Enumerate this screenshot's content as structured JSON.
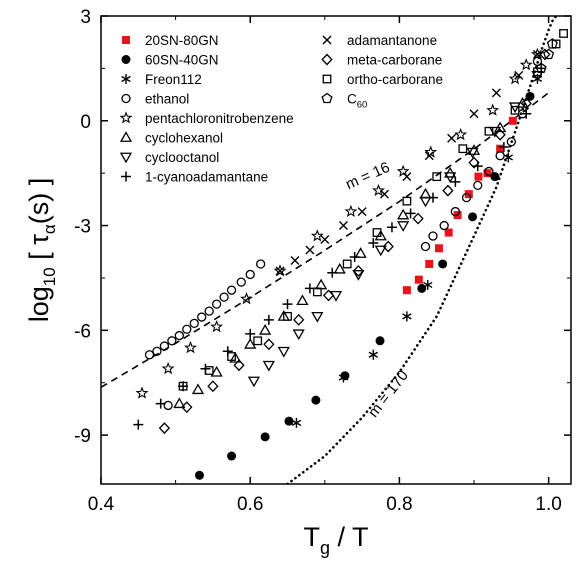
{
  "chart_data": {
    "type": "scatter",
    "xlabel": "Tg / T",
    "ylabel": "log10 [ τα(s) ]",
    "xlim": [
      0.4,
      1.03
    ],
    "ylim": [
      -10.4,
      3
    ],
    "x_ticks": [
      "0.4",
      "0.6",
      "0.8",
      "1.0"
    ],
    "x_tick_values": [
      0.4,
      0.6,
      0.8,
      1.0
    ],
    "y_ticks": [
      "3",
      "0",
      "-3",
      "-6",
      "-9"
    ],
    "y_tick_values": [
      3,
      0,
      -3,
      -6,
      -9
    ],
    "grid": false,
    "legend_placement": "top-left",
    "annotations": [
      {
        "text": "m = 16",
        "x": 0.76,
        "y": -1.7
      },
      {
        "text": "m = 170",
        "x": 0.79,
        "y": -7.9
      }
    ],
    "lines": [
      {
        "label": "m = 16",
        "style": "dashed",
        "x": [
          0.4,
          0.5,
          0.6,
          0.7,
          0.8,
          0.9,
          1.0
        ],
        "y": [
          -7.63,
          -6.37,
          -5.06,
          -3.71,
          -2.31,
          -0.81,
          0.8
        ]
      },
      {
        "label": "m = 170",
        "style": "dotted",
        "x": [
          0.65,
          0.7,
          0.75,
          0.8,
          0.85,
          0.9,
          0.93,
          0.96,
          0.98,
          0.99,
          1.0,
          1.005,
          1.01
        ],
        "y": [
          -10.4,
          -9.6,
          -8.5,
          -7.2,
          -5.6,
          -3.3,
          -1.9,
          0.0,
          1.3,
          2.0,
          2.6,
          2.85,
          3.0
        ]
      }
    ],
    "series": [
      {
        "name": "20SN-80GN",
        "marker": "filled-square",
        "color": "#e8131c",
        "x": [
          0.81,
          0.826,
          0.84,
          0.853,
          0.866,
          0.878,
          0.893,
          0.906,
          0.918,
          0.935,
          0.952
        ],
        "y": [
          -4.85,
          -4.55,
          -4.1,
          -3.65,
          -3.2,
          -2.7,
          -2.1,
          -1.6,
          -1.5,
          -0.8,
          0.0
        ]
      },
      {
        "name": "60SN-40GN",
        "marker": "filled-circle",
        "color": "#000000",
        "x": [
          0.532,
          0.575,
          0.62,
          0.652,
          0.688,
          0.727,
          0.774,
          0.83,
          0.858,
          0.898,
          0.928,
          0.975
        ],
        "y": [
          -10.15,
          -9.6,
          -9.05,
          -8.6,
          -8.0,
          -7.3,
          -6.3,
          -4.8,
          -4.1,
          -2.75,
          -1.6,
          0.7
        ]
      },
      {
        "name": "Freon112",
        "marker": "asterisk",
        "color": "#000000",
        "x": [
          0.662,
          0.725,
          0.765,
          0.81,
          0.838,
          0.946,
          0.985
        ],
        "y": [
          -8.65,
          -7.35,
          -6.7,
          -5.6,
          -4.7,
          -1.05,
          1.2
        ]
      },
      {
        "name": "ethanol",
        "marker": "open-circle",
        "color": "#000000",
        "x": [
          0.465,
          0.475,
          0.485,
          0.495,
          0.505,
          0.515,
          0.525,
          0.535,
          0.545,
          0.555,
          0.565,
          0.575,
          0.588,
          0.6,
          0.614,
          0.49,
          0.835,
          0.845,
          0.86,
          0.875,
          0.89,
          0.905,
          0.92,
          0.935,
          0.95,
          0.965,
          0.985
        ],
        "y": [
          -6.7,
          -6.6,
          -6.45,
          -6.3,
          -6.15,
          -5.97,
          -5.8,
          -5.62,
          -5.45,
          -5.25,
          -5.05,
          -4.85,
          -4.62,
          -4.4,
          -4.1,
          -8.15,
          -3.6,
          -3.3,
          -3.0,
          -2.6,
          -2.2,
          -1.85,
          -1.45,
          -1.0,
          -0.6,
          0.2,
          1.7
        ]
      },
      {
        "name": "pentachloronitrobenzene",
        "marker": "open-star",
        "color": "#000000",
        "x": [
          0.455,
          0.49,
          0.52,
          0.555,
          0.595,
          0.64,
          0.69,
          0.735,
          0.772,
          0.805,
          0.842,
          0.882,
          0.925,
          0.955,
          0.97,
          0.985
        ],
        "y": [
          -7.8,
          -7.1,
          -6.5,
          -5.9,
          -5.1,
          -4.3,
          -3.3,
          -2.6,
          -2.0,
          -1.45,
          -0.9,
          -0.4,
          0.3,
          1.2,
          1.6,
          1.9
        ]
      },
      {
        "name": "cyclohexanol",
        "marker": "open-triangle-up",
        "color": "#000000",
        "x": [
          0.505,
          0.53,
          0.555,
          0.58,
          0.6,
          0.62,
          0.645,
          0.67,
          0.695,
          0.72,
          0.748,
          0.775,
          0.805,
          0.835,
          0.868,
          0.9,
          0.935,
          0.965
        ],
        "y": [
          -8.1,
          -7.7,
          -7.2,
          -6.8,
          -6.4,
          -6.0,
          -5.6,
          -5.15,
          -4.7,
          -4.25,
          -3.8,
          -3.3,
          -2.7,
          -2.1,
          -1.5,
          -0.85,
          -0.2,
          0.5
        ]
      },
      {
        "name": "cyclooctanol",
        "marker": "open-triangle-down",
        "color": "#000000",
        "x": [
          0.605,
          0.625,
          0.645,
          0.665,
          0.69,
          0.715,
          0.745,
          0.775,
          0.805,
          0.835,
          0.868,
          0.898,
          0.928,
          0.955,
          0.985
        ],
        "y": [
          -7.45,
          -7.0,
          -6.6,
          -6.1,
          -5.6,
          -5.0,
          -4.4,
          -3.7,
          -3.0,
          -2.3,
          -1.6,
          -0.9,
          -0.3,
          0.4,
          1.3
        ]
      },
      {
        "name": "1-cyanoadamantane",
        "marker": "plus",
        "color": "#000000",
        "x": [
          0.45,
          0.48,
          0.51,
          0.54,
          0.57,
          0.6,
          0.625,
          0.65,
          0.68,
          0.71,
          0.74,
          0.765,
          0.79,
          0.815,
          0.845,
          0.875,
          0.905,
          0.94,
          0.97,
          0.99
        ],
        "y": [
          -8.7,
          -8.1,
          -7.6,
          -7.1,
          -6.6,
          -6.1,
          -5.7,
          -5.25,
          -4.8,
          -4.35,
          -3.9,
          -3.5,
          -3.05,
          -2.65,
          -2.2,
          -1.75,
          -1.3,
          -0.75,
          0.2,
          1.5
        ]
      },
      {
        "name": "adamantanone",
        "marker": "cross",
        "color": "#000000",
        "x": [
          0.64,
          0.66,
          0.68,
          0.7,
          0.725,
          0.75,
          0.78,
          0.81,
          0.84,
          0.87,
          0.9,
          0.93,
          0.96,
          0.985
        ],
        "y": [
          -4.3,
          -4.0,
          -3.7,
          -3.4,
          -3.0,
          -2.6,
          -2.1,
          -1.6,
          -1.0,
          -0.5,
          0.2,
          0.8,
          1.3,
          1.9
        ]
      },
      {
        "name": "meta-carborane",
        "marker": "open-diamond",
        "color": "#000000",
        "x": [
          0.485,
          0.515,
          0.55,
          0.585,
          0.625,
          0.665,
          0.705,
          0.745,
          0.785,
          0.825,
          0.865,
          0.9,
          0.935,
          0.97,
          0.995
        ],
        "y": [
          -8.8,
          -8.2,
          -7.6,
          -7.0,
          -6.4,
          -5.7,
          -5.0,
          -4.3,
          -3.6,
          -2.8,
          -2.0,
          -1.2,
          -0.4,
          0.5,
          1.9
        ]
      },
      {
        "name": "ortho-carborane",
        "marker": "open-square",
        "color": "#000000",
        "x": [
          0.51,
          0.545,
          0.575,
          0.61,
          0.65,
          0.69,
          0.73,
          0.77,
          0.81,
          0.85,
          0.885,
          0.92,
          0.955,
          0.985,
          1.01,
          1.02
        ],
        "y": [
          -7.6,
          -7.15,
          -6.75,
          -6.3,
          -5.6,
          -4.9,
          -4.1,
          -3.2,
          -2.3,
          -1.6,
          -0.8,
          -0.3,
          0.3,
          1.4,
          2.2,
          2.5
        ]
      },
      {
        "name": "C60",
        "marker": "open-pentagon",
        "color": "#000000",
        "x": [
          0.99,
          1.0,
          1.005
        ],
        "y": [
          1.5,
          1.9,
          2.2
        ]
      }
    ],
    "legend": {
      "col1": [
        {
          "marker": "filled-square",
          "color": "#e8131c",
          "text": "20SN-80GN"
        },
        {
          "marker": "filled-circle",
          "color": "#000000",
          "text": "60SN-40GN"
        },
        {
          "marker": "asterisk",
          "color": "#000000",
          "text": "Freon112"
        },
        {
          "marker": "open-circle",
          "color": "#000000",
          "text": "ethanol"
        },
        {
          "marker": "open-star",
          "color": "#000000",
          "text": "pentachloronitrobenzene"
        },
        {
          "marker": "open-triangle-up",
          "color": "#000000",
          "text": "cyclohexanol"
        },
        {
          "marker": "open-triangle-down",
          "color": "#000000",
          "text": "cyclooctanol"
        },
        {
          "marker": "plus",
          "color": "#000000",
          "text": "1-cyanoadamantane"
        }
      ],
      "col2": [
        {
          "marker": "cross",
          "color": "#000000",
          "text": "adamantanone"
        },
        {
          "marker": "open-diamond",
          "color": "#000000",
          "text": "meta-carborane"
        },
        {
          "marker": "open-square",
          "color": "#000000",
          "text": "ortho-carborane"
        },
        {
          "marker": "open-pentagon",
          "color": "#000000",
          "text": "C",
          "sub": "60"
        }
      ]
    }
  }
}
